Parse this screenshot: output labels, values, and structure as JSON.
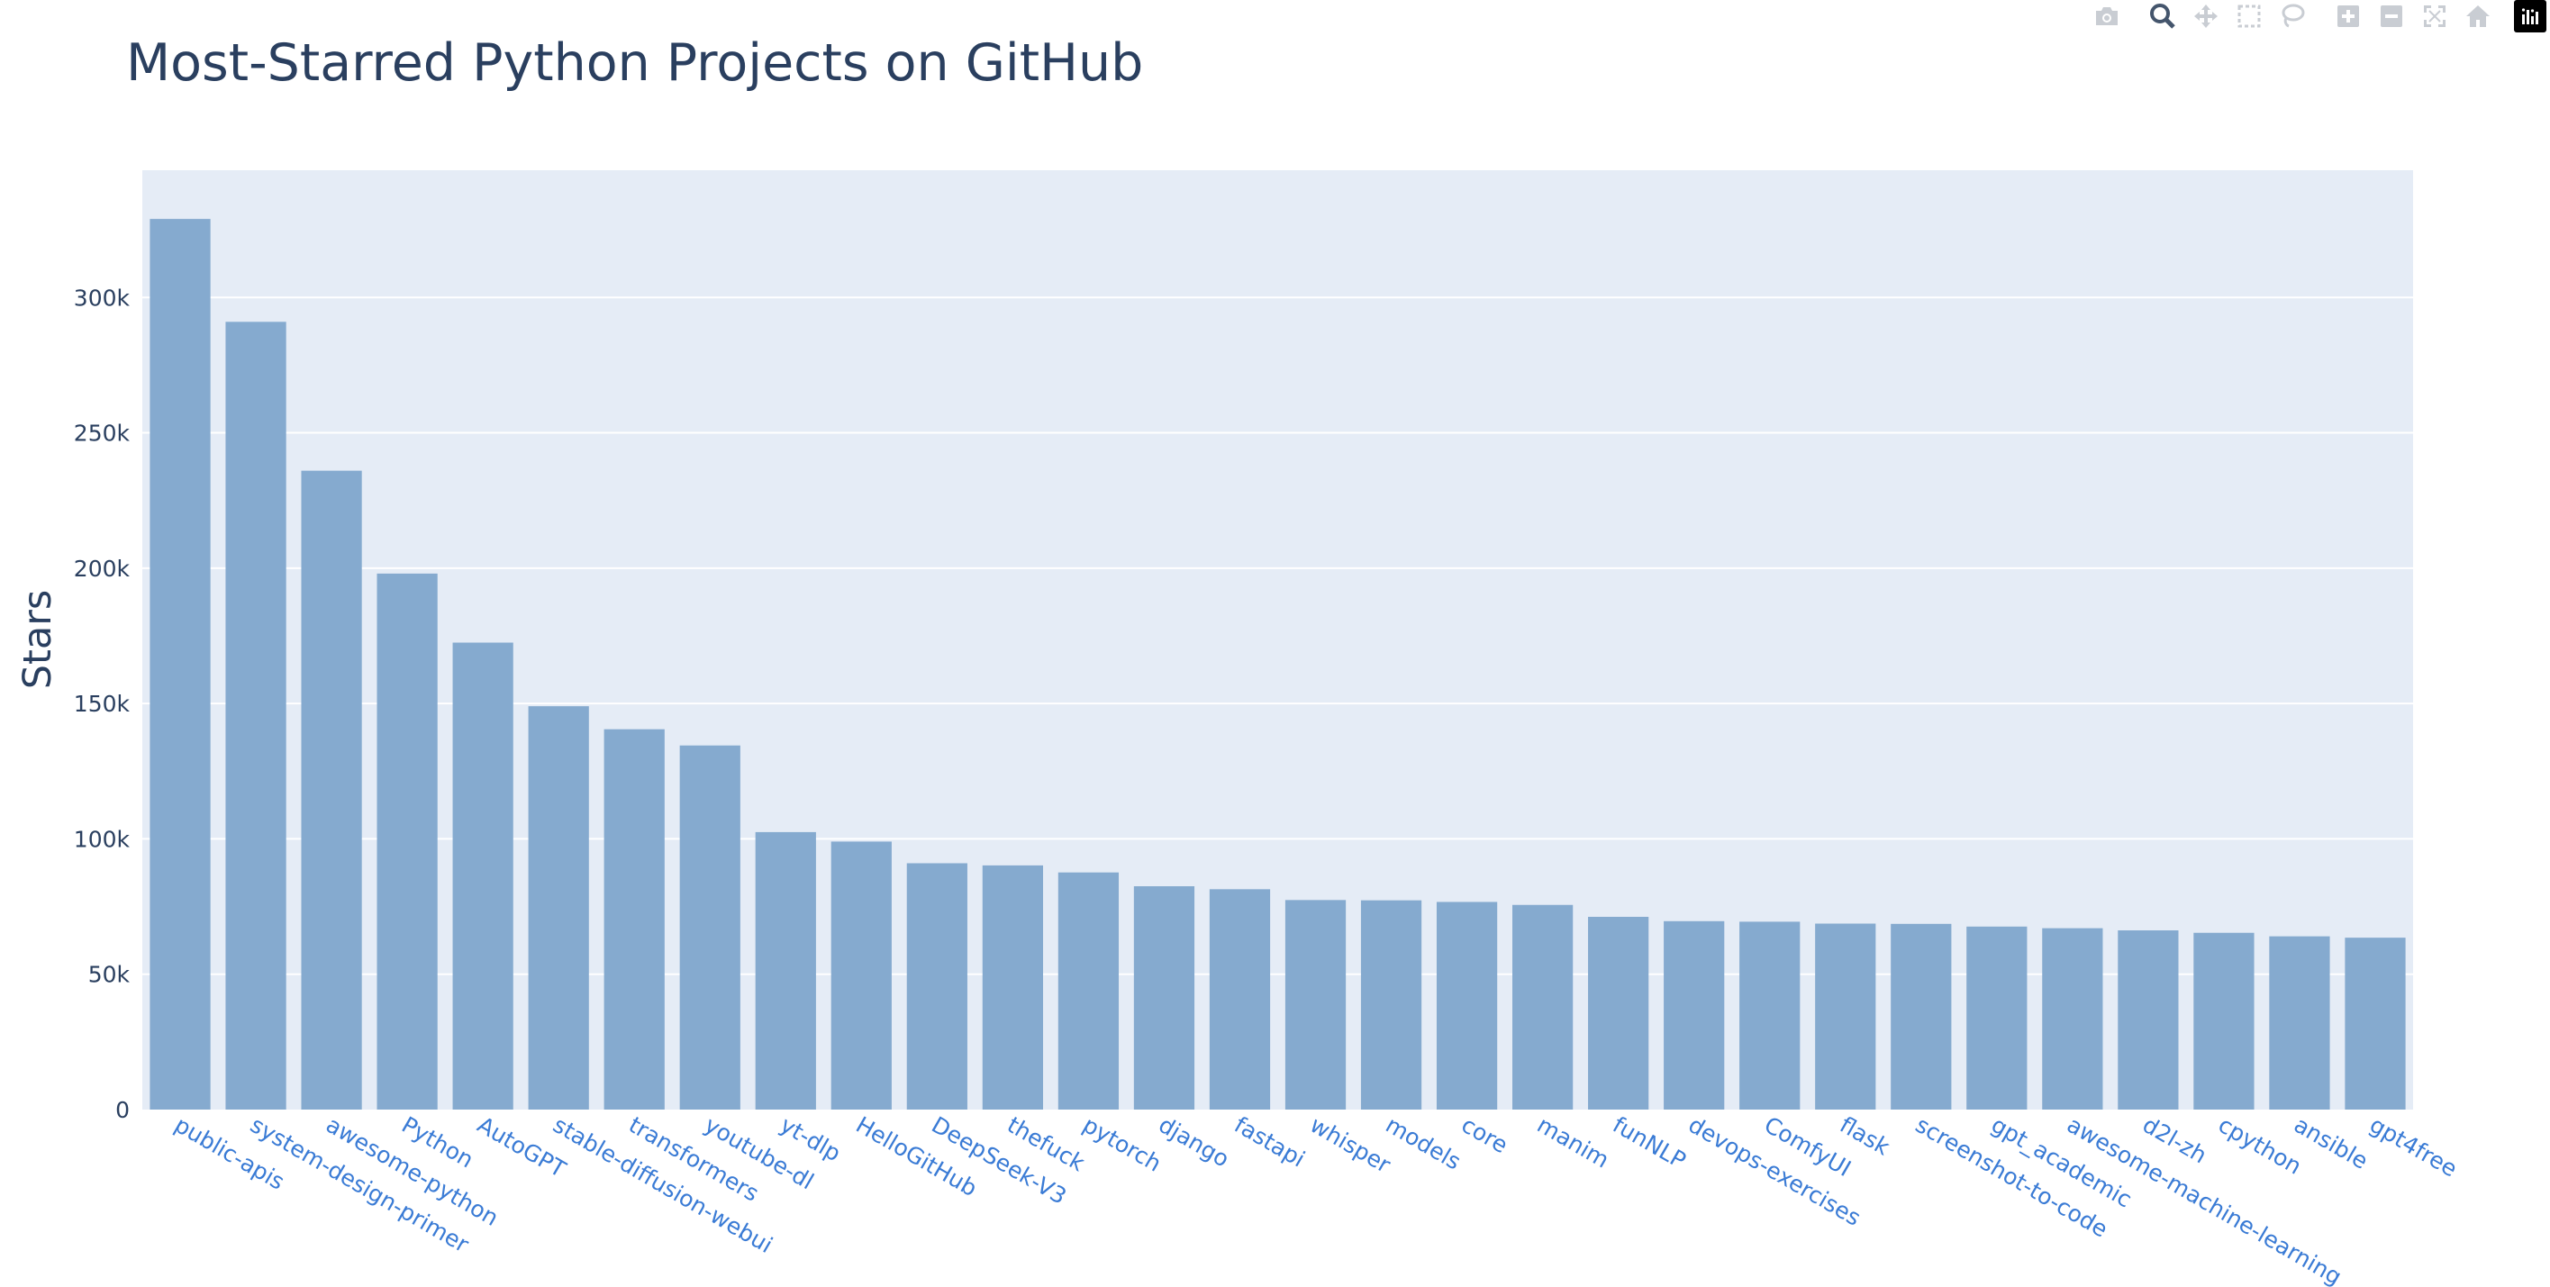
{
  "chart_data": {
    "type": "bar",
    "title": "Most-Starred Python Projects on GitHub",
    "ylabel": "Stars",
    "xlabel": "",
    "ylim": [
      0,
      347000
    ],
    "yticks": [
      0,
      50000,
      100000,
      150000,
      200000,
      250000,
      300000
    ],
    "ytick_labels": [
      "0",
      "50k",
      "100k",
      "150k",
      "200k",
      "250k",
      "300k"
    ],
    "grid": true,
    "bar_color": "#85aacf",
    "plot_bg": "#e5ecf6",
    "categories": [
      "public-apis",
      "system-design-primer",
      "awesome-python",
      "Python",
      "AutoGPT",
      "stable-diffusion-webui",
      "transformers",
      "youtube-dl",
      "yt-dlp",
      "HelloGitHub",
      "DeepSeek-V3",
      "thefuck",
      "pytorch",
      "django",
      "fastapi",
      "whisper",
      "models",
      "core",
      "manim",
      "funNLP",
      "devops-exercises",
      "ComfyUI",
      "flask",
      "screenshot-to-code",
      "gpt_academic",
      "awesome-machine-learning",
      "d2l-zh",
      "cpython",
      "ansible",
      "gpt4free"
    ],
    "values": [
      329000,
      291000,
      236000,
      198000,
      172500,
      149000,
      140500,
      134500,
      102500,
      99000,
      91000,
      90200,
      87600,
      82500,
      81400,
      77400,
      77300,
      76700,
      75600,
      71200,
      69600,
      69400,
      68700,
      68600,
      67600,
      67000,
      66200,
      65300,
      64000,
      63500
    ]
  },
  "modebar": {
    "icons": [
      "camera-icon",
      "zoom-icon",
      "pan-icon",
      "box-select-icon",
      "lasso-select-icon",
      "zoom-in-icon",
      "zoom-out-icon",
      "autoscale-icon",
      "reset-axes-icon",
      "plotly-logo-icon"
    ],
    "icon_color": "#c9cdd3",
    "active_icon_color": "#44556c"
  }
}
